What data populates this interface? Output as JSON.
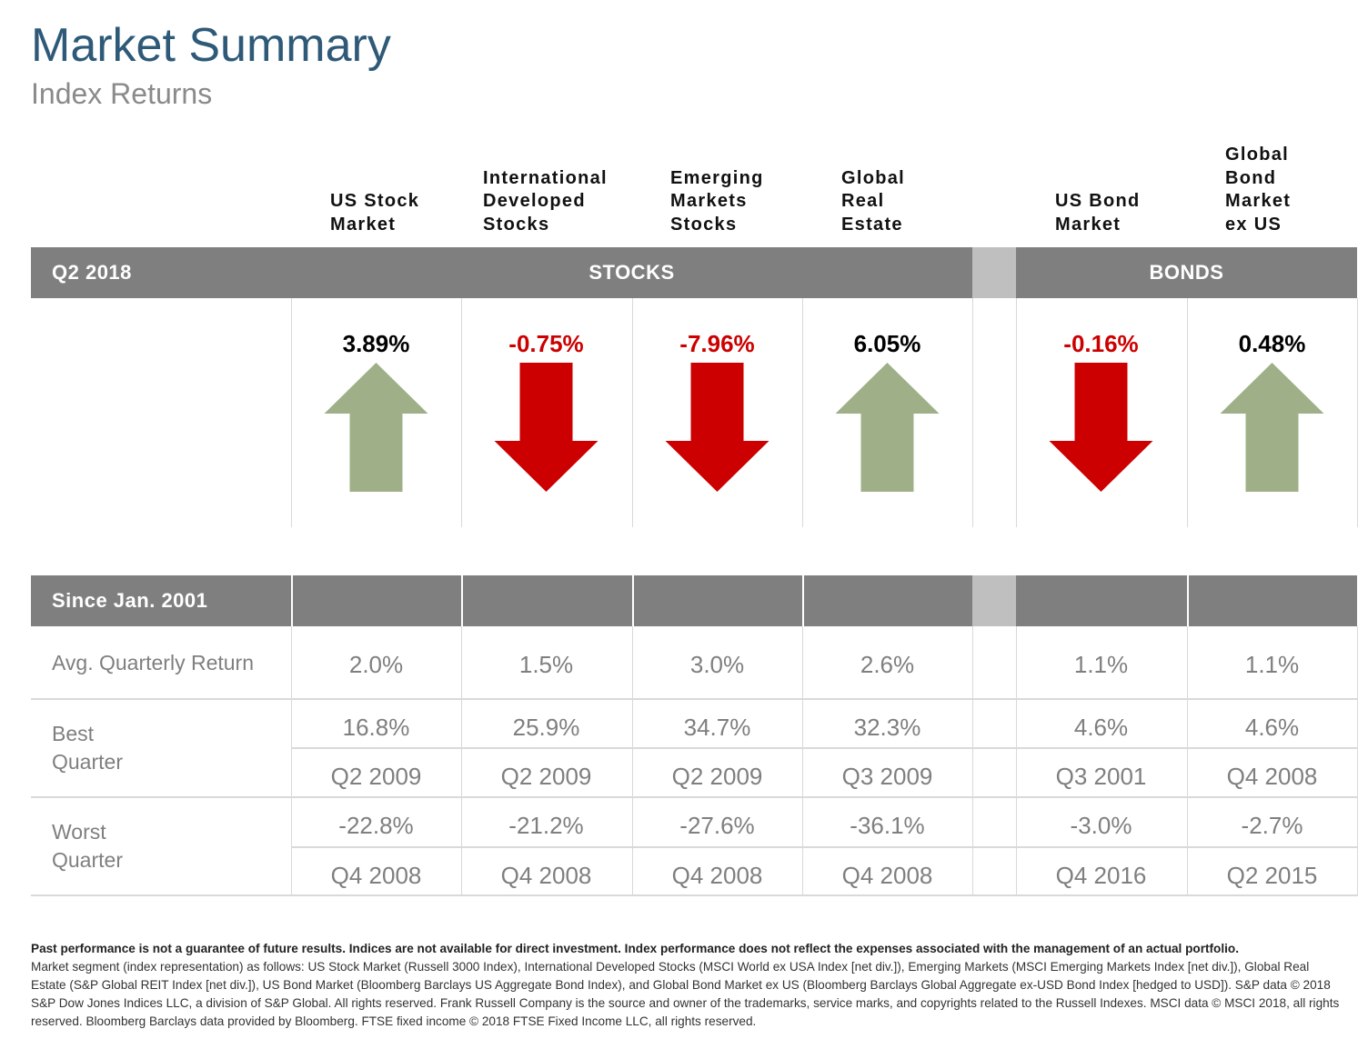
{
  "header": {
    "title": "Market Summary",
    "subtitle": "Index Returns"
  },
  "colors": {
    "positive_arrow": "#9fb088",
    "negative_arrow": "#cc0000",
    "header_bar": "#7f7f7f",
    "title": "#2e5a78"
  },
  "columns": [
    {
      "label": "US Stock\nMarket",
      "group": "stocks"
    },
    {
      "label": "International\nDeveloped\nStocks",
      "group": "stocks"
    },
    {
      "label": "Emerging\nMarkets\nStocks",
      "group": "stocks"
    },
    {
      "label": "Global\nReal\nEstate",
      "group": "stocks"
    },
    {
      "label": "US Bond\nMarket",
      "group": "bonds"
    },
    {
      "label": "Global\nBond\nMarket\nex US",
      "group": "bonds"
    }
  ],
  "quarter_bar": {
    "period": "Q2 2018",
    "stocks_label": "STOCKS",
    "bonds_label": "BONDS"
  },
  "chart_data": {
    "type": "table",
    "period": "Q2 2018",
    "categories": [
      "US Stock Market",
      "International Developed Stocks",
      "Emerging Markets Stocks",
      "Global Real Estate",
      "US Bond Market",
      "Global Bond Market ex US"
    ],
    "values": [
      3.89,
      -0.75,
      -7.96,
      6.05,
      -0.16,
      0.48
    ],
    "value_labels": [
      "3.89%",
      "-0.75%",
      "-7.96%",
      "6.05%",
      "-0.16%",
      "0.48%"
    ],
    "direction": [
      "up",
      "down",
      "down",
      "up",
      "down",
      "up"
    ]
  },
  "since_table": {
    "header": "Since Jan. 2001",
    "avg_label": "Avg. Quarterly Return",
    "avg": [
      "2.0%",
      "1.5%",
      "3.0%",
      "2.6%",
      "1.1%",
      "1.1%"
    ],
    "best_label": "Best\nQuarter",
    "best_value": [
      "16.8%",
      "25.9%",
      "34.7%",
      "32.3%",
      "4.6%",
      "4.6%"
    ],
    "best_quarter": [
      "Q2 2009",
      "Q2 2009",
      "Q2 2009",
      "Q3 2009",
      "Q3 2001",
      "Q4 2008"
    ],
    "worst_label": "Worst\nQuarter",
    "worst_value": [
      "-22.8%",
      "-21.2%",
      "-27.6%",
      "-36.1%",
      "-3.0%",
      "-2.7%"
    ],
    "worst_quarter": [
      "Q4 2008",
      "Q4 2008",
      "Q4 2008",
      "Q4 2008",
      "Q4 2016",
      "Q2 2015"
    ]
  },
  "footnote": {
    "bold": "Past performance is not a guarantee of future results. Indices are not available for direct investment. Index performance does not reflect the expenses associated with the management of an actual portfolio.",
    "body": "Market segment (index representation) as follows: US Stock Market (Russell 3000 Index), International Developed Stocks (MSCI World ex USA Index [net div.]), Emerging Markets (MSCI Emerging Markets Index [net div.]), Global Real Estate (S&P Global REIT Index [net div.]), US Bond Market (Bloomberg Barclays US Aggregate Bond Index), and Global Bond Market ex US (Bloomberg Barclays Global Aggregate ex-USD Bond Index [hedged to USD]). S&P data © 2018 S&P Dow Jones Indices LLC, a division of S&P Global. All rights reserved. Frank Russell Company is the source and owner of the trademarks, service marks, and copyrights related to the Russell Indexes. MSCI data © MSCI 2018, all rights reserved. Bloomberg Barclays data provided by Bloomberg. FTSE fixed income © 2018 FTSE Fixed Income LLC, all rights reserved."
  }
}
